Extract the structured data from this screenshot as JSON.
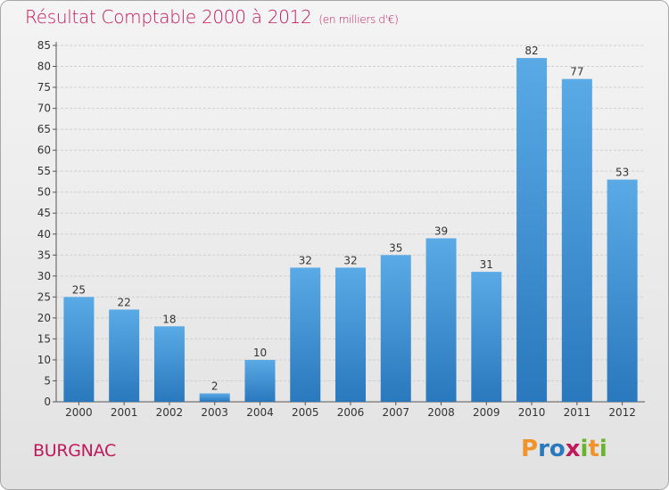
{
  "header": {
    "title": "Résultat Comptable 2000 à 2012",
    "subtitle": "(en milliers d'€)"
  },
  "footer": {
    "commune": "BURGNAC",
    "logo": "Proxiti"
  },
  "colors": {
    "accent": "#c0185b",
    "bar_light": "#5aaae6",
    "bar_dark": "#2a78bd",
    "logo_letters": [
      "#f0932b",
      "#2a78bd",
      "#2a78bd",
      "#c0185b",
      "#6ab42d",
      "#f0932b",
      "#6ab42d"
    ]
  },
  "chart_data": {
    "type": "bar",
    "title": "Résultat Comptable 2000 à 2012",
    "subtitle": "(en milliers d'€)",
    "categories": [
      "2000",
      "2001",
      "2002",
      "2003",
      "2004",
      "2005",
      "2006",
      "2007",
      "2008",
      "2009",
      "2010",
      "2011",
      "2012"
    ],
    "values": [
      25,
      22,
      18,
      2,
      10,
      32,
      32,
      35,
      39,
      31,
      82,
      77,
      53
    ],
    "ylim": [
      0,
      85
    ],
    "yticks": [
      0,
      5,
      10,
      15,
      20,
      25,
      30,
      35,
      40,
      45,
      50,
      55,
      60,
      65,
      70,
      75,
      80,
      85
    ],
    "grid": true,
    "data_labels": true
  }
}
